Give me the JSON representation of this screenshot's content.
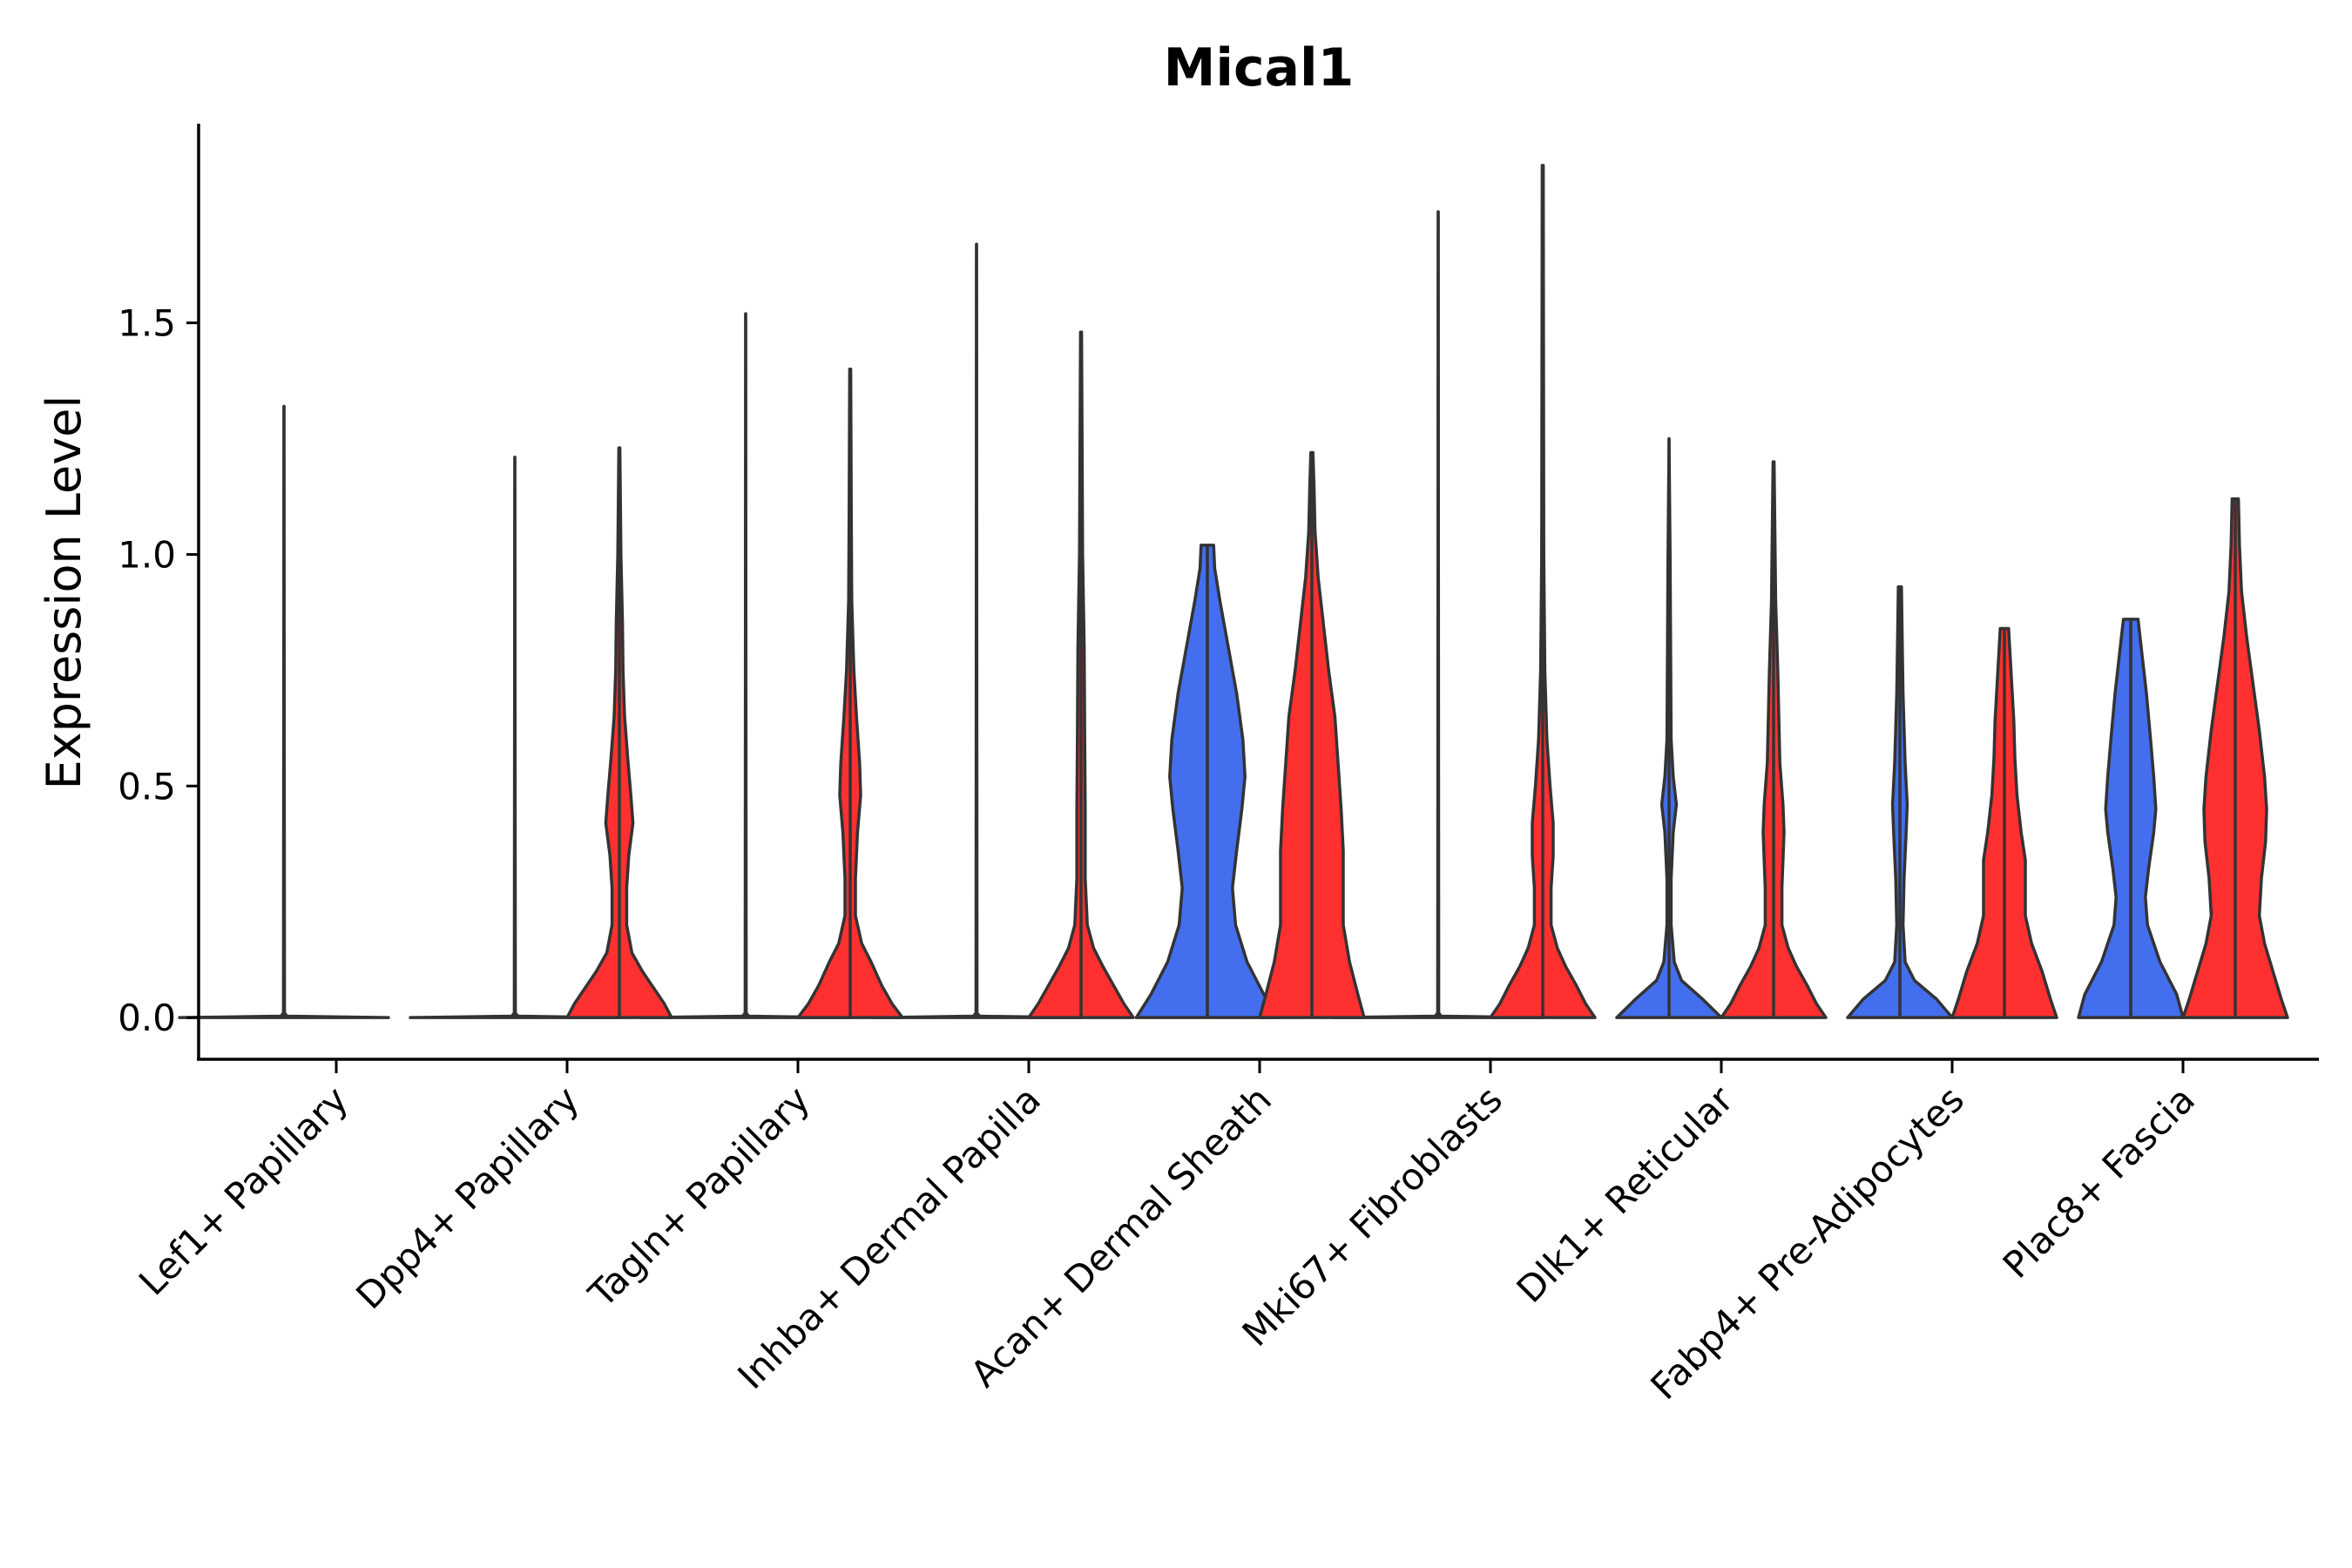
{
  "chart_data": {
    "type": "violin",
    "title": "Mical1",
    "xlabel": "",
    "ylabel": "Expression Level",
    "ylim": [
      -0.09,
      1.93
    ],
    "yticks": [
      0.0,
      0.5,
      1.0,
      1.5
    ],
    "ytick_labels": [
      "0.0",
      "0.5",
      "1.0",
      "1.5"
    ],
    "grid": false,
    "colors": {
      "group1": "#436EEE",
      "group2": "#FF3030",
      "outline": "#333333"
    },
    "categories": [
      "Lef1+ Papillary",
      "Dpp4+ Papillary",
      "Tagln+ Papillary",
      "Inhba+ Dermal Papilla",
      "Acan+ Dermal Sheath",
      "Mki67+ Fibroblasts",
      "Dlk1+ Reticular",
      "Fabp4+ Pre-Adipocytes",
      "Plac8+ Fascia"
    ],
    "series": [
      {
        "name": "group1",
        "color": "#436EEE",
        "max_values": [
          1.32,
          1.21,
          1.52,
          1.67,
          1.02,
          1.74,
          1.25,
          0.93,
          0.86
        ],
        "density_profiles": [
          [
            [
              0,
              1
            ],
            [
              0.003,
              0.03
            ],
            [
              0.01,
              0.005
            ],
            [
              1.32,
              0.0
            ]
          ],
          [
            [
              0,
              1
            ],
            [
              0.003,
              0.03
            ],
            [
              0.01,
              0.005
            ],
            [
              1.21,
              0.0
            ]
          ],
          [
            [
              0,
              1
            ],
            [
              0.003,
              0.03
            ],
            [
              0.01,
              0.005
            ],
            [
              1.52,
              0.0
            ]
          ],
          [
            [
              0,
              1
            ],
            [
              0.003,
              0.03
            ],
            [
              0.01,
              0.005
            ],
            [
              1.67,
              0.0
            ]
          ],
          [
            [
              0,
              0.68
            ],
            [
              0.05,
              0.54
            ],
            [
              0.12,
              0.38
            ],
            [
              0.2,
              0.27
            ],
            [
              0.28,
              0.24
            ],
            [
              0.36,
              0.28
            ],
            [
              0.45,
              0.33
            ],
            [
              0.52,
              0.36
            ],
            [
              0.6,
              0.34
            ],
            [
              0.7,
              0.28
            ],
            [
              0.8,
              0.2
            ],
            [
              0.9,
              0.12
            ],
            [
              0.97,
              0.07
            ],
            [
              1.02,
              0.06
            ]
          ],
          [
            [
              0,
              1
            ],
            [
              0.003,
              0.03
            ],
            [
              0.01,
              0.005
            ],
            [
              1.74,
              0.0
            ]
          ],
          [
            [
              0,
              0.5
            ],
            [
              0.04,
              0.32
            ],
            [
              0.08,
              0.12
            ],
            [
              0.12,
              0.05
            ],
            [
              0.2,
              0.02
            ],
            [
              0.3,
              0.02
            ],
            [
              0.4,
              0.04
            ],
            [
              0.46,
              0.07
            ],
            [
              0.52,
              0.04
            ],
            [
              0.6,
              0.02
            ],
            [
              0.8,
              0.015
            ],
            [
              1.0,
              0.01
            ],
            [
              1.25,
              0.0
            ]
          ],
          [
            [
              0,
              0.5
            ],
            [
              0.04,
              0.35
            ],
            [
              0.08,
              0.14
            ],
            [
              0.12,
              0.05
            ],
            [
              0.2,
              0.03
            ],
            [
              0.3,
              0.04
            ],
            [
              0.4,
              0.06
            ],
            [
              0.46,
              0.07
            ],
            [
              0.55,
              0.05
            ],
            [
              0.7,
              0.03
            ],
            [
              0.85,
              0.02
            ],
            [
              0.93,
              0.015
            ]
          ],
          [
            [
              0,
              0.5
            ],
            [
              0.05,
              0.44
            ],
            [
              0.12,
              0.28
            ],
            [
              0.2,
              0.16
            ],
            [
              0.26,
              0.14
            ],
            [
              0.32,
              0.17
            ],
            [
              0.4,
              0.22
            ],
            [
              0.45,
              0.24
            ],
            [
              0.52,
              0.22
            ],
            [
              0.6,
              0.19
            ],
            [
              0.7,
              0.15
            ],
            [
              0.78,
              0.11
            ],
            [
              0.84,
              0.08
            ],
            [
              0.86,
              0.07
            ]
          ]
        ]
      },
      {
        "name": "group2",
        "color": "#FF3030",
        "max_values": [
          null,
          1.23,
          1.4,
          1.48,
          1.22,
          1.84,
          1.2,
          0.84,
          1.12
        ],
        "density_profiles": [
          null,
          [
            [
              0,
              0.5
            ],
            [
              0.03,
              0.43
            ],
            [
              0.07,
              0.31
            ],
            [
              0.1,
              0.22
            ],
            [
              0.14,
              0.12
            ],
            [
              0.2,
              0.07
            ],
            [
              0.28,
              0.07
            ],
            [
              0.35,
              0.09
            ],
            [
              0.42,
              0.13
            ],
            [
              0.48,
              0.11
            ],
            [
              0.56,
              0.08
            ],
            [
              0.65,
              0.05
            ],
            [
              0.75,
              0.035
            ],
            [
              0.85,
              0.03
            ],
            [
              1.0,
              0.015
            ],
            [
              1.23,
              0.005
            ]
          ],
          [
            [
              0,
              0.5
            ],
            [
              0.03,
              0.4
            ],
            [
              0.07,
              0.3
            ],
            [
              0.12,
              0.2
            ],
            [
              0.16,
              0.11
            ],
            [
              0.22,
              0.05
            ],
            [
              0.3,
              0.05
            ],
            [
              0.4,
              0.07
            ],
            [
              0.48,
              0.1
            ],
            [
              0.55,
              0.09
            ],
            [
              0.65,
              0.06
            ],
            [
              0.75,
              0.035
            ],
            [
              0.9,
              0.015
            ],
            [
              1.1,
              0.01
            ],
            [
              1.4,
              0.005
            ]
          ],
          [
            [
              0,
              0.5
            ],
            [
              0.03,
              0.41
            ],
            [
              0.07,
              0.31
            ],
            [
              0.11,
              0.21
            ],
            [
              0.15,
              0.12
            ],
            [
              0.2,
              0.06
            ],
            [
              0.3,
              0.04
            ],
            [
              0.45,
              0.04
            ],
            [
              0.6,
              0.035
            ],
            [
              0.8,
              0.03
            ],
            [
              1.0,
              0.015
            ],
            [
              1.48,
              0.005
            ]
          ],
          [
            [
              0,
              0.5
            ],
            [
              0.05,
              0.44
            ],
            [
              0.12,
              0.36
            ],
            [
              0.2,
              0.3
            ],
            [
              0.28,
              0.3
            ],
            [
              0.36,
              0.3
            ],
            [
              0.45,
              0.28
            ],
            [
              0.55,
              0.25
            ],
            [
              0.65,
              0.22
            ],
            [
              0.75,
              0.16
            ],
            [
              0.85,
              0.11
            ],
            [
              0.95,
              0.06
            ],
            [
              1.05,
              0.03
            ],
            [
              1.15,
              0.02
            ],
            [
              1.22,
              0.01
            ]
          ],
          [
            [
              0,
              0.5
            ],
            [
              0.03,
              0.41
            ],
            [
              0.07,
              0.32
            ],
            [
              0.11,
              0.22
            ],
            [
              0.15,
              0.14
            ],
            [
              0.2,
              0.08
            ],
            [
              0.28,
              0.08
            ],
            [
              0.35,
              0.1
            ],
            [
              0.42,
              0.1
            ],
            [
              0.5,
              0.07
            ],
            [
              0.6,
              0.04
            ],
            [
              0.75,
              0.02
            ],
            [
              1.0,
              0.01
            ],
            [
              1.84,
              0.005
            ]
          ],
          [
            [
              0,
              0.5
            ],
            [
              0.03,
              0.41
            ],
            [
              0.07,
              0.32
            ],
            [
              0.11,
              0.22
            ],
            [
              0.15,
              0.14
            ],
            [
              0.2,
              0.08
            ],
            [
              0.28,
              0.08
            ],
            [
              0.34,
              0.09
            ],
            [
              0.4,
              0.1
            ],
            [
              0.46,
              0.09
            ],
            [
              0.55,
              0.06
            ],
            [
              0.65,
              0.05
            ],
            [
              0.75,
              0.04
            ],
            [
              0.9,
              0.02
            ],
            [
              1.2,
              0.005
            ]
          ],
          [
            [
              0,
              0.5
            ],
            [
              0.04,
              0.44
            ],
            [
              0.1,
              0.36
            ],
            [
              0.16,
              0.26
            ],
            [
              0.22,
              0.2
            ],
            [
              0.28,
              0.2
            ],
            [
              0.34,
              0.2
            ],
            [
              0.4,
              0.16
            ],
            [
              0.48,
              0.12
            ],
            [
              0.56,
              0.1
            ],
            [
              0.64,
              0.09
            ],
            [
              0.72,
              0.07
            ],
            [
              0.8,
              0.05
            ],
            [
              0.84,
              0.04
            ]
          ],
          [
            [
              0,
              0.5
            ],
            [
              0.04,
              0.44
            ],
            [
              0.1,
              0.36
            ],
            [
              0.16,
              0.28
            ],
            [
              0.22,
              0.23
            ],
            [
              0.3,
              0.25
            ],
            [
              0.38,
              0.29
            ],
            [
              0.45,
              0.3
            ],
            [
              0.52,
              0.28
            ],
            [
              0.62,
              0.23
            ],
            [
              0.72,
              0.17
            ],
            [
              0.82,
              0.11
            ],
            [
              0.92,
              0.06
            ],
            [
              1.02,
              0.04
            ],
            [
              1.12,
              0.03
            ]
          ]
        ]
      }
    ]
  }
}
